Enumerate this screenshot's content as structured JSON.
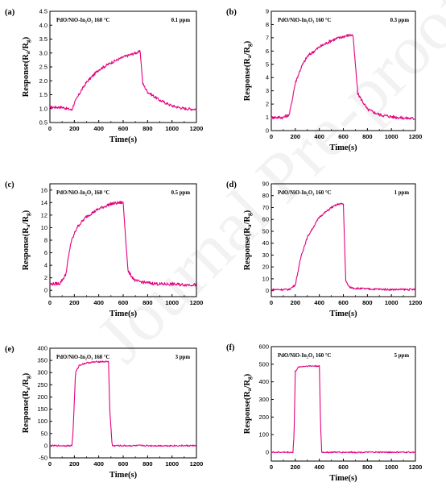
{
  "watermark": "Journal Pre-proofs",
  "theme": {
    "line_color": "#e4007f",
    "axis_color": "#000000"
  },
  "chart_data": [
    {
      "id": "a",
      "type": "line",
      "panel_label": "(a)",
      "sample_label": "PdO/NiO-In₂O₃  160 °C",
      "conc_label": "0.1 ppm",
      "xlabel": "Time(s)",
      "ylabel": "Response(Ra/Rg)",
      "ylabel_main": "Response(R",
      "ylabel_sub1": "a",
      "ylabel_mid": "/R",
      "ylabel_sub2": "g",
      "ylabel_end": ")",
      "xlim": [
        0,
        1200
      ],
      "ylim": [
        0.5,
        4.5
      ],
      "xticks": [
        0,
        200,
        400,
        600,
        800,
        1000,
        1200
      ],
      "yticks": [
        0.5,
        1.0,
        1.5,
        2.0,
        2.5,
        3.0,
        3.5,
        4.0,
        4.5
      ],
      "ytick_labels": [
        "0.5",
        "1.0",
        "1.5",
        "2.0",
        "2.5",
        "3.0",
        "3.5",
        "4.0",
        "4.5"
      ],
      "x": [
        0,
        100,
        180,
        200,
        250,
        300,
        400,
        500,
        600,
        700,
        740,
        760,
        800,
        900,
        1000,
        1100,
        1200
      ],
      "y": [
        1.05,
        1.05,
        0.95,
        1.2,
        1.6,
        1.95,
        2.4,
        2.65,
        2.85,
        3.0,
        3.05,
        1.9,
        1.6,
        1.3,
        1.1,
        1.0,
        0.98
      ],
      "noise": 0.05
    },
    {
      "id": "b",
      "type": "line",
      "panel_label": "(b)",
      "sample_label": "PdO/NiO-In₂O₃  160 °C",
      "conc_label": "0.3 ppm",
      "xlabel": "Time(s)",
      "ylabel_main": "Response(R",
      "ylabel_sub1": "a",
      "ylabel_mid": "/R",
      "ylabel_sub2": "g",
      "ylabel_end": ")",
      "xlim": [
        0,
        1200
      ],
      "ylim": [
        0,
        9
      ],
      "xticks": [
        0,
        200,
        400,
        600,
        800,
        1000,
        1200
      ],
      "yticks": [
        0,
        1,
        2,
        3,
        4,
        5,
        6,
        7,
        8,
        9
      ],
      "ytick_labels": [
        "0",
        "1",
        "2",
        "3",
        "4",
        "5",
        "6",
        "7",
        "8",
        "9"
      ],
      "x": [
        0,
        100,
        150,
        200,
        250,
        300,
        400,
        500,
        600,
        650,
        680,
        720,
        800,
        900,
        1000,
        1100,
        1200
      ],
      "y": [
        1.0,
        1.0,
        1.2,
        3.6,
        4.8,
        5.6,
        6.3,
        6.8,
        7.1,
        7.2,
        7.2,
        2.8,
        1.6,
        1.2,
        1.05,
        0.95,
        0.9
      ],
      "noise": 0.12
    },
    {
      "id": "c",
      "type": "line",
      "panel_label": "(c)",
      "sample_label": "PdO/NiO-In₂O₃  160 °C",
      "conc_label": "0.5 ppm",
      "xlabel": "Time(s)",
      "ylabel_main": "Response(R",
      "ylabel_sub1": "a",
      "ylabel_mid": "/R",
      "ylabel_sub2": "g",
      "ylabel_end": ")",
      "xlim": [
        0,
        1200
      ],
      "ylim": [
        -1,
        17
      ],
      "xticks": [
        0,
        200,
        400,
        600,
        800,
        1000,
        1200
      ],
      "yticks": [
        0,
        2,
        4,
        6,
        8,
        10,
        12,
        14,
        16
      ],
      "ytick_labels": [
        "0",
        "2",
        "4",
        "6",
        "8",
        "10",
        "12",
        "14",
        "16"
      ],
      "x": [
        0,
        80,
        130,
        170,
        220,
        300,
        400,
        500,
        580,
        600,
        640,
        700,
        800,
        900,
        1000,
        1100,
        1200
      ],
      "y": [
        1.0,
        1.1,
        2.5,
        7.5,
        10.0,
        11.8,
        13.0,
        13.8,
        14.0,
        14.0,
        3.0,
        1.5,
        1.2,
        1.0,
        1.0,
        0.9,
        0.9
      ],
      "noise": 0.25
    },
    {
      "id": "d",
      "type": "line",
      "panel_label": "(d)",
      "sample_label": "PdO/NiO-In₂O₃  160 °C",
      "conc_label": "1 ppm",
      "xlabel": "Time(s)",
      "ylabel_main": "Response(R",
      "ylabel_sub1": "a",
      "ylabel_mid": "/R",
      "ylabel_sub2": "g",
      "ylabel_end": ")",
      "xlim": [
        0,
        1200
      ],
      "ylim": [
        -5,
        90
      ],
      "xticks": [
        0,
        200,
        400,
        600,
        800,
        1000,
        1200
      ],
      "yticks": [
        0,
        10,
        20,
        30,
        40,
        50,
        60,
        70,
        80,
        90
      ],
      "ytick_labels": [
        "0",
        "10",
        "20",
        "30",
        "40",
        "50",
        "60",
        "70",
        "80",
        "90"
      ],
      "x": [
        0,
        150,
        200,
        250,
        300,
        400,
        500,
        560,
        600,
        620,
        650,
        700,
        800,
        1000,
        1200
      ],
      "y": [
        1,
        1,
        5,
        30,
        45,
        62,
        70,
        73,
        73,
        8,
        3,
        2,
        1.5,
        1,
        1
      ],
      "noise": 0.8
    },
    {
      "id": "e",
      "type": "line",
      "panel_label": "(e)",
      "sample_label": "PdO/NiO-In₂O₃  160 °C",
      "conc_label": "3 ppm",
      "xlabel": "Time(s)",
      "ylabel_main": "Response(R",
      "ylabel_sub1": "a",
      "ylabel_mid": "/R",
      "ylabel_sub2": "g",
      "ylabel_end": ")",
      "xlim": [
        0,
        1200
      ],
      "ylim": [
        -50,
        400
      ],
      "xticks": [
        0,
        200,
        400,
        600,
        800,
        1000,
        1200
      ],
      "yticks": [
        -50,
        0,
        50,
        100,
        150,
        200,
        250,
        300,
        350,
        400
      ],
      "ytick_labels": [
        "-50",
        "0",
        "50",
        "100",
        "150",
        "200",
        "250",
        "300",
        "350",
        "400"
      ],
      "x": [
        0,
        180,
        190,
        210,
        240,
        300,
        400,
        480,
        490,
        510,
        600,
        800,
        1000,
        1200
      ],
      "y": [
        0,
        0,
        60,
        300,
        330,
        340,
        345,
        345,
        150,
        0,
        0,
        0,
        0,
        0
      ],
      "noise": 3
    },
    {
      "id": "f",
      "type": "line",
      "panel_label": "(f)",
      "sample_label": "PdO/NiO-In₂O₃  160 °C",
      "conc_label": "5 ppm",
      "xlabel": "Time(s)",
      "ylabel_main": "Response(R",
      "ylabel_sub1": "a",
      "ylabel_mid": "/R",
      "ylabel_sub2": "g",
      "ylabel_end": ")",
      "xlim": [
        0,
        1200
      ],
      "ylim": [
        -50,
        600
      ],
      "xticks": [
        0,
        200,
        400,
        600,
        800,
        1000,
        1200
      ],
      "yticks": [
        0,
        100,
        200,
        300,
        400,
        500,
        600
      ],
      "ytick_labels": [
        "0",
        "100",
        "200",
        "300",
        "400",
        "500",
        "600"
      ],
      "x": [
        0,
        180,
        190,
        200,
        230,
        300,
        400,
        410,
        420,
        500,
        800,
        1200
      ],
      "y": [
        0,
        0,
        100,
        460,
        485,
        490,
        490,
        150,
        0,
        0,
        0,
        0
      ],
      "noise": 4
    }
  ]
}
